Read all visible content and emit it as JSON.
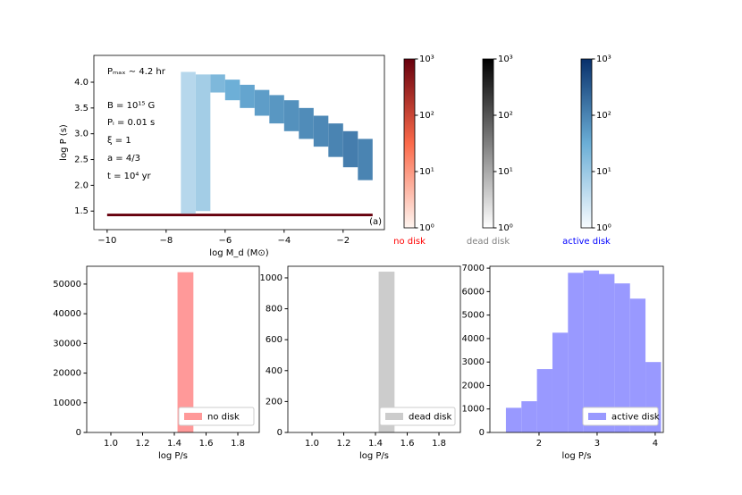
{
  "chart_data": [
    {
      "type": "heatmap",
      "xlabel": "log M_d (M⊙)",
      "ylabel": "log P (s)",
      "panel_label": "(a)",
      "xlim": [
        -10.45,
        -0.6
      ],
      "ylim": [
        1.14,
        4.52
      ],
      "xticks": [
        {
          "value": -10,
          "label": "−10"
        },
        {
          "value": -8,
          "label": "−8"
        },
        {
          "value": -6,
          "label": "−6"
        },
        {
          "value": -4,
          "label": "−4"
        },
        {
          "value": -2,
          "label": "−2"
        }
      ],
      "yticks": [
        1.5,
        {
          "value": 2,
          "label": "2.0"
        },
        2.5,
        {
          "value": 3,
          "label": "3.0"
        },
        3.5,
        {
          "value": 4,
          "label": "4.0"
        }
      ],
      "annotations": [
        "Pₘₐₓ ∼ 4.2 hr",
        "B = 10¹⁵ G",
        "Pᵢ = 0.01 s",
        "ξ = 1",
        "a = 4/3",
        "t = 10⁴ yr"
      ],
      "clim": [
        1,
        1000
      ],
      "cticks": [
        {
          "value": 1,
          "label": "10⁰"
        },
        {
          "value": 10,
          "label": "10¹"
        },
        {
          "value": 100,
          "label": "10²"
        },
        {
          "value": 1000,
          "label": "10³"
        }
      ],
      "layers": [
        {
          "name": "no disk",
          "label_color": "#ff0000",
          "colors": [
            "#fff5f0",
            "#fb6a4a",
            "#67000d"
          ],
          "x_low": [
            -10
          ],
          "x_high": [
            -1
          ],
          "y_low": [
            1.4
          ],
          "y_high": [
            1.45
          ],
          "counts": [
            1000
          ]
        },
        {
          "name": "dead disk",
          "label_color": "#808080",
          "colors": [
            "#ffffff",
            "#7f7f7f",
            "#000000"
          ],
          "x_low": [],
          "x_high": [],
          "y_low": [],
          "y_high": [],
          "counts": []
        },
        {
          "name": "active disk",
          "label_color": "#0000ff",
          "colors": [
            "#f7fbff",
            "#6baed6",
            "#08306b"
          ],
          "x_low": [
            -7.5,
            -7,
            -6.5,
            -6,
            -5.5,
            -5,
            -4.5,
            -4,
            -3.5,
            -3,
            -2.5,
            -2,
            -1.5
          ],
          "x_high": [
            -7,
            -6.5,
            -6,
            -5.5,
            -5,
            -4.5,
            -4,
            -3.5,
            -3,
            -2.5,
            -2,
            -1.5,
            -1
          ],
          "y_low": [
            1.45,
            1.5,
            3.8,
            3.65,
            3.5,
            3.35,
            3.2,
            3.05,
            2.9,
            2.75,
            2.55,
            2.35,
            2.1
          ],
          "y_high": [
            4.2,
            4.15,
            4.15,
            4.05,
            3.95,
            3.85,
            3.75,
            3.65,
            3.5,
            3.35,
            3.2,
            3.05,
            2.9
          ],
          "counts": [
            5,
            8,
            20,
            30,
            40,
            50,
            60,
            70,
            80,
            90,
            100,
            120,
            100
          ]
        }
      ]
    },
    {
      "type": "histogram",
      "xlabel": "log P/s",
      "xlim": [
        0.848,
        1.935
      ],
      "ylim": [
        0,
        56000
      ],
      "xticks": [
        {
          "value": 1,
          "label": "1.0"
        },
        1.2,
        1.4,
        1.6,
        1.8
      ],
      "yticks": [
        0,
        10000,
        20000,
        30000,
        40000,
        50000
      ],
      "bins": [
        1.42,
        1.52
      ],
      "series": [
        {
          "name": "no disk",
          "color": "#ff9999",
          "values": [
            54000
          ]
        }
      ]
    },
    {
      "type": "histogram",
      "xlabel": "log P/s",
      "xlim": [
        0.848,
        1.935
      ],
      "ylim": [
        0,
        1075
      ],
      "xticks": [
        {
          "value": 1,
          "label": "1.0"
        },
        1.2,
        1.4,
        1.6,
        1.8
      ],
      "yticks": [
        0,
        200,
        400,
        600,
        800,
        1000
      ],
      "bins": [
        1.42,
        1.52
      ],
      "series": [
        {
          "name": "dead disk",
          "color": "#cccccc",
          "values": [
            1040
          ]
        }
      ]
    },
    {
      "type": "histogram",
      "xlabel": "log P/s",
      "xlim": [
        1.154,
        4.14
      ],
      "ylim": [
        0,
        7080
      ],
      "xticks": [
        2,
        3,
        4
      ],
      "yticks": [
        0,
        1000,
        2000,
        3000,
        4000,
        5000,
        6000,
        7000
      ],
      "bins": [
        1.43,
        1.697,
        1.964,
        2.231,
        2.498,
        2.765,
        3.032,
        3.299,
        3.566,
        3.833,
        4.1
      ],
      "series": [
        {
          "name": "active disk",
          "color": "#9999ff",
          "values": [
            1050,
            1330,
            2700,
            4250,
            6800,
            6900,
            6750,
            6350,
            5700,
            3000
          ]
        }
      ]
    }
  ]
}
